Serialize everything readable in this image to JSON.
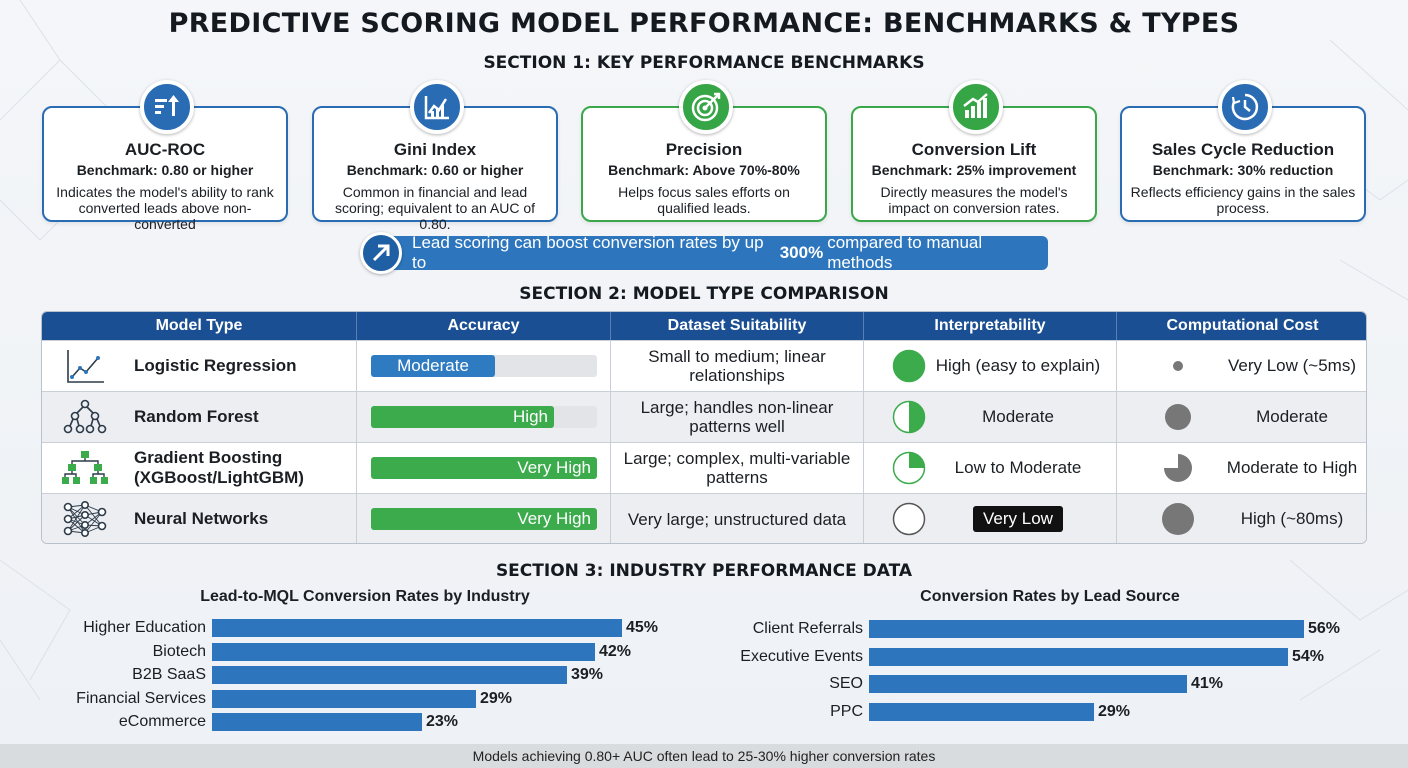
{
  "title": "PREDICTIVE SCORING MODEL PERFORMANCE: BENCHMARKS & TYPES",
  "section1": {
    "heading": "SECTION 1: KEY PERFORMANCE BENCHMARKS",
    "cards": [
      {
        "title": "AUC-ROC",
        "benchmark": "Benchmark: 0.80 or higher",
        "desc": "Indicates the model's ability to rank converted leads above non-converted",
        "icon": "sort-ascending-icon",
        "accent": "#2a6cb3"
      },
      {
        "title": "Gini Index",
        "benchmark": "Benchmark: 0.60 or higher",
        "desc": "Common in financial and lead scoring; equivalent to an AUC of 0.80.",
        "icon": "line-chart-icon",
        "accent": "#2a6cb3"
      },
      {
        "title": "Precision",
        "benchmark": "Benchmark: Above 70%-80%",
        "desc": "Helps focus sales efforts on qualified leads.",
        "icon": "target-icon",
        "accent": "#36a546"
      },
      {
        "title": "Conversion Lift",
        "benchmark": "Benchmark: 25% improvement",
        "desc": "Directly measures the model's impact on conversion rates.",
        "icon": "growth-chart-icon",
        "accent": "#36a546"
      },
      {
        "title": "Sales Cycle Reduction",
        "benchmark": "Benchmark: 30% reduction",
        "desc": "Reflects efficiency gains in the sales process.",
        "icon": "clock-icon",
        "accent": "#2a6cb3"
      }
    ],
    "callout": {
      "before": "Lead scoring can boost conversion rates by up to",
      "highlight": "300%",
      "after": "compared to manual methods",
      "icon": "arrow-up-right-icon"
    }
  },
  "section2": {
    "heading": "SECTION 2: MODEL TYPE COMPARISON",
    "columns": [
      "Model Type",
      "Accuracy",
      "Dataset Suitability",
      "Interpretability",
      "Computational Cost"
    ],
    "rows": [
      {
        "icon": "line-chart-icon",
        "model": "Logistic Regression",
        "accuracy": "Moderate",
        "accuracy_level": 0.55,
        "accuracy_color": "#2f7bc2",
        "dataset": "Small to medium; linear relationships",
        "interpretability": "High (easy to explain)",
        "interp_fill": 1.0,
        "cost": "Very Low (~5ms)",
        "cost_level": 0.25
      },
      {
        "icon": "tree-icon",
        "model": "Random Forest",
        "accuracy": "High",
        "accuracy_level": 0.81,
        "accuracy_color": "#3bab4c",
        "dataset": "Large; handles non-linear patterns well",
        "interpretability": "Moderate",
        "interp_fill": 0.5,
        "cost": "Moderate",
        "cost_level": 0.5
      },
      {
        "icon": "hierarchy-icon",
        "model": "Gradient Boosting (XGBoost/LightGBM)",
        "accuracy": "Very High",
        "accuracy_level": 1.0,
        "accuracy_color": "#3bab4c",
        "dataset": "Large; complex, multi-variable patterns",
        "interpretability": "Low to Moderate",
        "interp_fill": 0.25,
        "cost": "Moderate to High",
        "cost_level": 0.75
      },
      {
        "icon": "neural-network-icon",
        "model": "Neural Networks",
        "accuracy": "Very High",
        "accuracy_level": 1.0,
        "accuracy_color": "#3bab4c",
        "dataset": "Very large; unstructured data",
        "interpretability": "Very Low",
        "interp_fill": 0.0,
        "cost": "High (~80ms)",
        "cost_level": 1.0
      }
    ]
  },
  "section3": {
    "heading": "SECTION 3: INDUSTRY PERFORMANCE DATA",
    "chart_data": [
      {
        "type": "bar",
        "title": "Lead-to-MQL Conversion Rates by Industry",
        "categories": [
          "Higher Education",
          "Biotech",
          "B2B SaaS",
          "Financial Services",
          "eCommerce"
        ],
        "values": [
          45,
          42,
          39,
          29,
          23
        ],
        "value_labels": [
          "45%",
          "42%",
          "39%",
          "29%",
          "23%"
        ],
        "orientation": "horizontal",
        "color": "#2d76bd"
      },
      {
        "type": "bar",
        "title": "Conversion Rates by Lead Source",
        "categories": [
          "Client Referrals",
          "Executive Events",
          "SEO",
          "PPC"
        ],
        "values": [
          56,
          54,
          41,
          29
        ],
        "value_labels": [
          "56%",
          "54%",
          "41%",
          "29%"
        ],
        "orientation": "horizontal",
        "color": "#2d76bd"
      }
    ]
  },
  "footer": "Models achieving 0.80+ AUC often lead to 25-30% higher conversion rates"
}
